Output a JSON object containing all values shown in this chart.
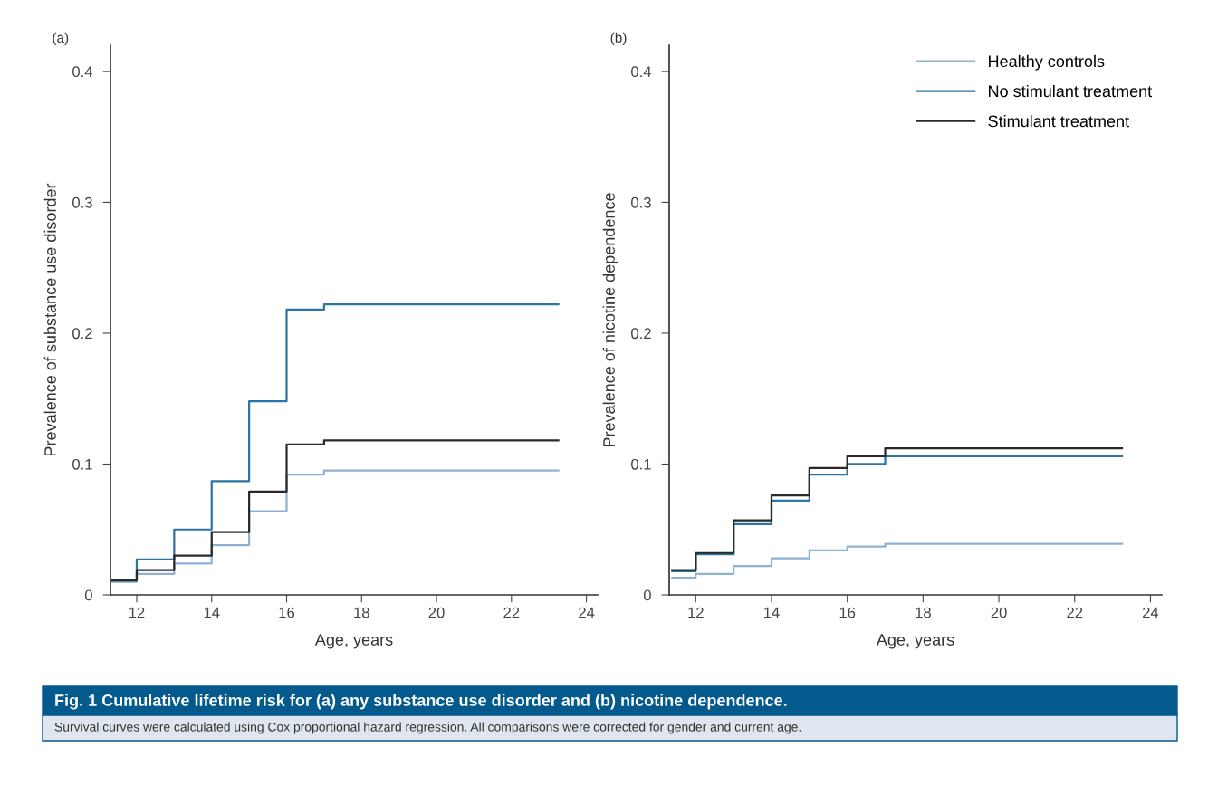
{
  "chart_data": [
    {
      "type": "step",
      "title": "(a)",
      "xlabel": "Age, years",
      "ylabel": "Prevalence of substance use disorder",
      "x": [
        11.35,
        12,
        13,
        14,
        15,
        16,
        17,
        23.25
      ],
      "series": [
        {
          "color": "#8fb2d4",
          "values": [
            0.01,
            0.016,
            0.024,
            0.038,
            0.064,
            0.092,
            0.095,
            0.095
          ]
        },
        {
          "color": "#2b74a3",
          "values": [
            0.011,
            0.027,
            0.05,
            0.087,
            0.148,
            0.218,
            0.222,
            0.222
          ]
        },
        {
          "color": "#2a2a2a",
          "values": [
            0.011,
            0.019,
            0.03,
            0.048,
            0.079,
            0.115,
            0.118,
            0.118
          ]
        }
      ],
      "xlim": [
        11.3,
        24.3
      ],
      "xticks": [
        12,
        14,
        16,
        18,
        20,
        22,
        24
      ],
      "ylim": [
        0,
        0.42
      ],
      "yticks": [
        0,
        0.1,
        0.2,
        0.3,
        0.4
      ],
      "grid": false,
      "legend": false,
      "annotations": [
        "Fig. 1 Cumulative lifetime risk for (a) any substance use disorder and (b) nicotine dependence.",
        "Survival curves were calculated using Cox proportional hazard regression. All comparisons were corrected for gender and current age."
      ]
    },
    {
      "type": "step",
      "title": "(b)",
      "xlabel": "Age, years",
      "ylabel": "Prevalence of nicotine dependence",
      "x": [
        11.38,
        12,
        13,
        14,
        15,
        16,
        17,
        23.25
      ],
      "series": [
        {
          "name": "Healthy controls",
          "color": "#8fb2d4",
          "values": [
            0.013,
            0.016,
            0.022,
            0.028,
            0.034,
            0.037,
            0.039,
            0.039
          ]
        },
        {
          "name": "No stimulant treatment",
          "color": "#2b74a3",
          "values": [
            0.018,
            0.031,
            0.054,
            0.072,
            0.092,
            0.1,
            0.106,
            0.106
          ]
        },
        {
          "name": "Stimulant treatment",
          "color": "#2a2a2a",
          "values": [
            0.019,
            0.032,
            0.057,
            0.076,
            0.097,
            0.106,
            0.112,
            0.112
          ]
        }
      ],
      "xlim": [
        11.3,
        24.3
      ],
      "xticks": [
        12,
        14,
        16,
        18,
        20,
        22,
        24
      ],
      "ylim": [
        0,
        0.42
      ],
      "yticks": [
        0,
        0.1,
        0.2,
        0.3,
        0.4
      ],
      "grid": false,
      "legend": "top right"
    }
  ]
}
